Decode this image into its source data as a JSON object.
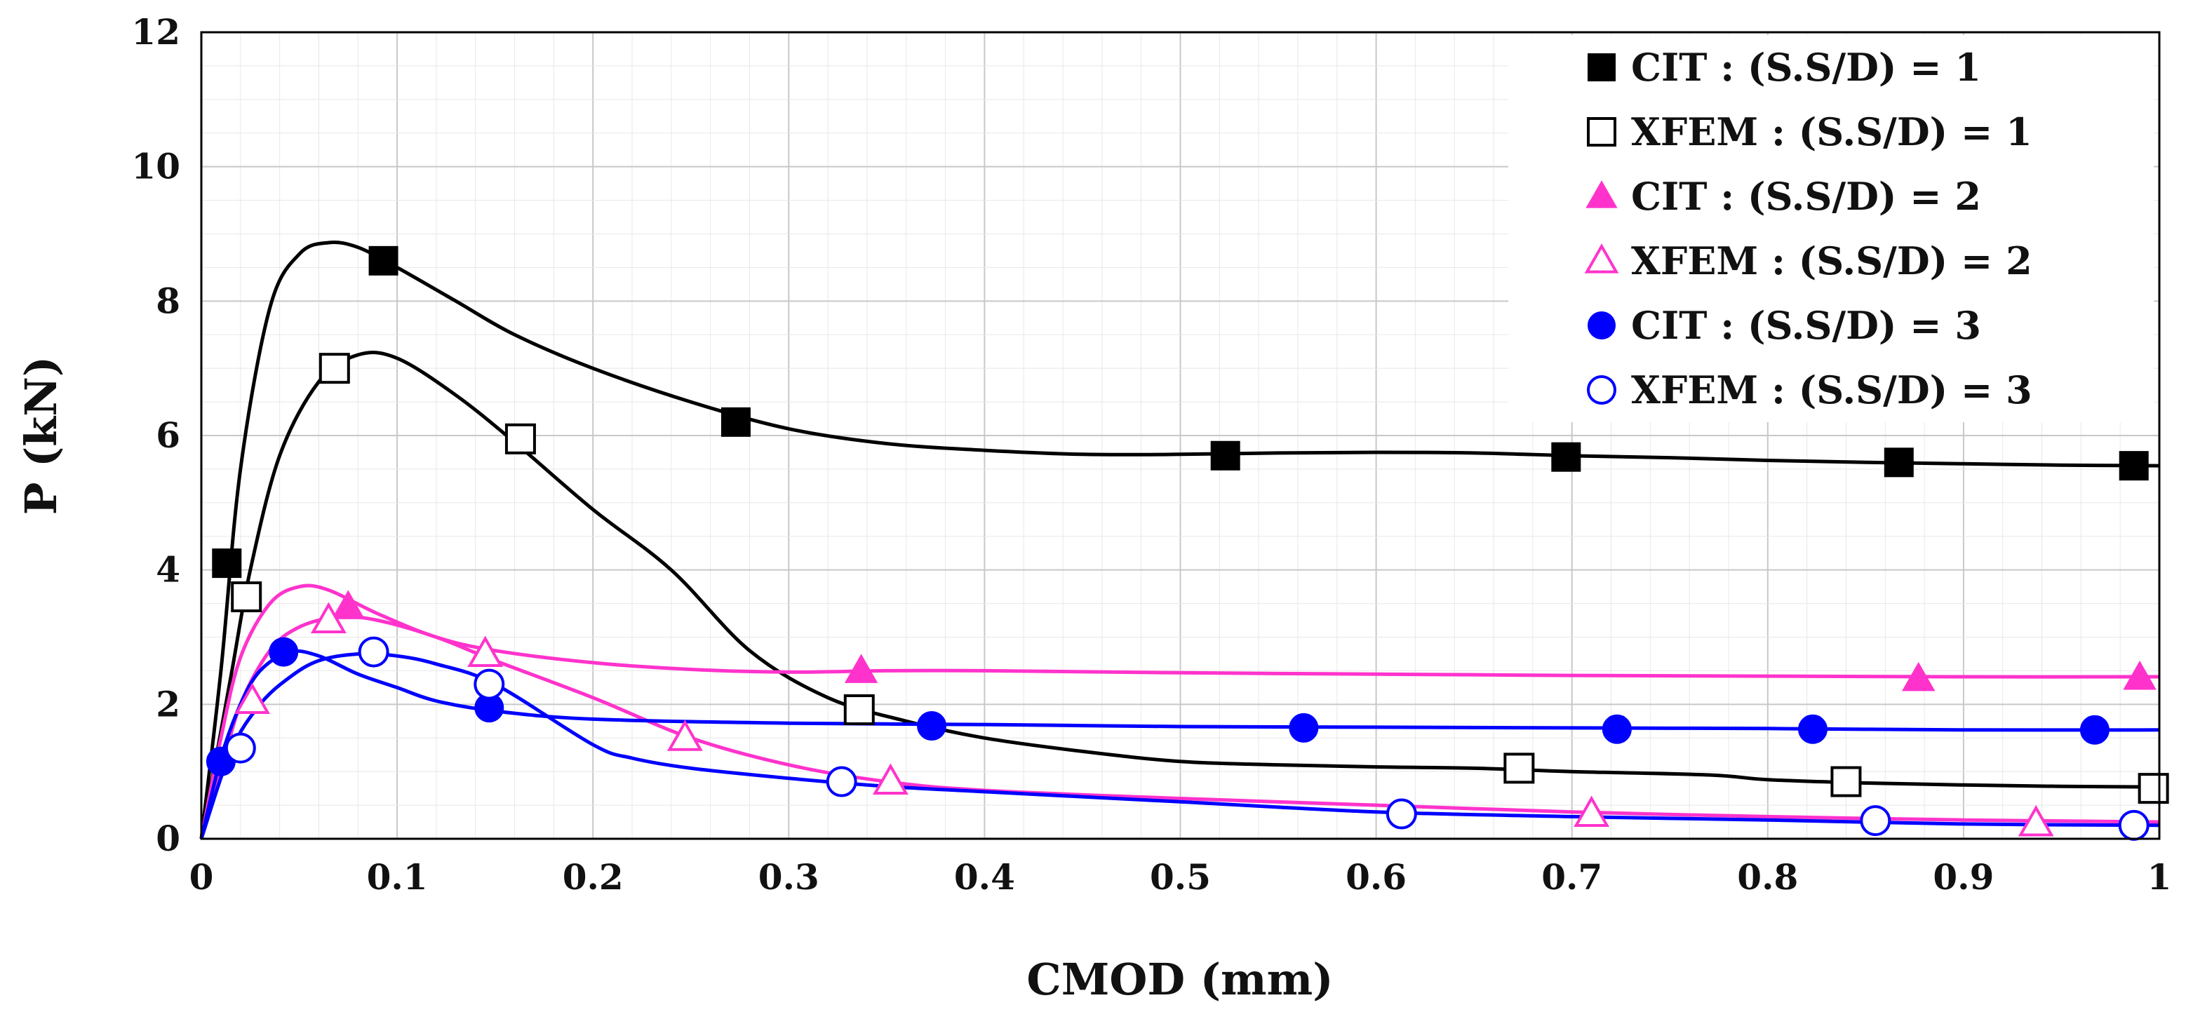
{
  "chart_data": {
    "type": "line",
    "title": "",
    "xlabel": "CMOD (mm)",
    "ylabel": "P (kN)",
    "xlim": [
      0,
      1
    ],
    "ylim": [
      0,
      12
    ],
    "x_ticks": [
      "0",
      "0.1",
      "0.2",
      "0.3",
      "0.4",
      "0.5",
      "0.6",
      "0.7",
      "0.8",
      "0.9",
      "1"
    ],
    "y_ticks": [
      "0",
      "2",
      "4",
      "6",
      "8",
      "10",
      "12"
    ],
    "grid": true,
    "legend_position": "top-right",
    "series": [
      {
        "name": "CIT : (S.S/D) = 1",
        "color": "#000000",
        "marker": "square-filled",
        "curve": [
          [
            0,
            0
          ],
          [
            0.01,
            2.5
          ],
          [
            0.02,
            5.5
          ],
          [
            0.035,
            7.9
          ],
          [
            0.05,
            8.7
          ],
          [
            0.065,
            8.87
          ],
          [
            0.08,
            8.8
          ],
          [
            0.1,
            8.5
          ],
          [
            0.13,
            8.0
          ],
          [
            0.16,
            7.5
          ],
          [
            0.2,
            7.0
          ],
          [
            0.25,
            6.5
          ],
          [
            0.3,
            6.1
          ],
          [
            0.35,
            5.88
          ],
          [
            0.4,
            5.78
          ],
          [
            0.45,
            5.72
          ],
          [
            0.5,
            5.72
          ],
          [
            0.55,
            5.74
          ],
          [
            0.6,
            5.75
          ],
          [
            0.65,
            5.74
          ],
          [
            0.7,
            5.7
          ],
          [
            0.75,
            5.67
          ],
          [
            0.8,
            5.63
          ],
          [
            0.85,
            5.6
          ],
          [
            0.9,
            5.58
          ],
          [
            0.95,
            5.56
          ],
          [
            1.0,
            5.55
          ]
        ],
        "points": [
          [
            0.013,
            4.1
          ],
          [
            0.093,
            8.6
          ],
          [
            0.273,
            6.2
          ],
          [
            0.523,
            5.7
          ],
          [
            0.697,
            5.68
          ],
          [
            0.867,
            5.6
          ],
          [
            0.987,
            5.55
          ]
        ]
      },
      {
        "name": "XFEM : (S.S/D) = 1",
        "color": "#000000",
        "marker": "square-open",
        "curve": [
          [
            0,
            0
          ],
          [
            0.015,
            2.4
          ],
          [
            0.025,
            4.0
          ],
          [
            0.04,
            5.7
          ],
          [
            0.06,
            6.8
          ],
          [
            0.08,
            7.2
          ],
          [
            0.1,
            7.15
          ],
          [
            0.13,
            6.6
          ],
          [
            0.16,
            5.9
          ],
          [
            0.2,
            4.9
          ],
          [
            0.24,
            4.0
          ],
          [
            0.28,
            2.8
          ],
          [
            0.32,
            2.1
          ],
          [
            0.36,
            1.75
          ],
          [
            0.4,
            1.5
          ],
          [
            0.45,
            1.3
          ],
          [
            0.5,
            1.15
          ],
          [
            0.55,
            1.1
          ],
          [
            0.6,
            1.07
          ],
          [
            0.65,
            1.05
          ],
          [
            0.7,
            1.0
          ],
          [
            0.77,
            0.95
          ],
          [
            0.8,
            0.88
          ],
          [
            0.85,
            0.83
          ],
          [
            0.9,
            0.8
          ],
          [
            0.95,
            0.78
          ],
          [
            1.0,
            0.77
          ]
        ],
        "points": [
          [
            0.023,
            3.6
          ],
          [
            0.068,
            7.0
          ],
          [
            0.163,
            5.95
          ],
          [
            0.336,
            1.92
          ],
          [
            0.673,
            1.05
          ],
          [
            0.84,
            0.85
          ],
          [
            0.997,
            0.75
          ]
        ]
      },
      {
        "name": "CIT : (S.S/D) = 2",
        "color": "#ff33cc",
        "marker": "triangle-filled",
        "curve": [
          [
            0,
            0
          ],
          [
            0.01,
            1.5
          ],
          [
            0.02,
            2.7
          ],
          [
            0.035,
            3.5
          ],
          [
            0.05,
            3.75
          ],
          [
            0.065,
            3.7
          ],
          [
            0.09,
            3.35
          ],
          [
            0.12,
            3.0
          ],
          [
            0.15,
            2.8
          ],
          [
            0.2,
            2.62
          ],
          [
            0.25,
            2.52
          ],
          [
            0.3,
            2.48
          ],
          [
            0.35,
            2.5
          ],
          [
            0.4,
            2.5
          ],
          [
            0.5,
            2.47
          ],
          [
            0.6,
            2.45
          ],
          [
            0.7,
            2.43
          ],
          [
            0.8,
            2.42
          ],
          [
            0.9,
            2.41
          ],
          [
            1.0,
            2.41
          ]
        ],
        "points": [
          [
            0.075,
            3.45
          ],
          [
            0.337,
            2.5
          ],
          [
            0.877,
            2.38
          ],
          [
            0.99,
            2.4
          ]
        ]
      },
      {
        "name": "XFEM : (S.S/D) = 2",
        "color": "#ff33cc",
        "marker": "triangle-open",
        "curve": [
          [
            0,
            0
          ],
          [
            0.01,
            1.0
          ],
          [
            0.02,
            2.0
          ],
          [
            0.035,
            2.8
          ],
          [
            0.05,
            3.15
          ],
          [
            0.07,
            3.3
          ],
          [
            0.09,
            3.25
          ],
          [
            0.12,
            3.0
          ],
          [
            0.15,
            2.65
          ],
          [
            0.2,
            2.1
          ],
          [
            0.25,
            1.5
          ],
          [
            0.3,
            1.1
          ],
          [
            0.35,
            0.85
          ],
          [
            0.4,
            0.72
          ],
          [
            0.5,
            0.6
          ],
          [
            0.6,
            0.5
          ],
          [
            0.7,
            0.4
          ],
          [
            0.8,
            0.33
          ],
          [
            0.9,
            0.28
          ],
          [
            1.0,
            0.25
          ]
        ],
        "points": [
          [
            0.026,
            2.05
          ],
          [
            0.065,
            3.25
          ],
          [
            0.145,
            2.75
          ],
          [
            0.247,
            1.5
          ],
          [
            0.352,
            0.85
          ],
          [
            0.71,
            0.37
          ],
          [
            0.937,
            0.23
          ]
        ]
      },
      {
        "name": "CIT : (S.S/D) = 3",
        "color": "#0000ff",
        "marker": "circle-filled",
        "curve": [
          [
            0,
            0
          ],
          [
            0.01,
            1.2
          ],
          [
            0.02,
            2.0
          ],
          [
            0.03,
            2.5
          ],
          [
            0.045,
            2.78
          ],
          [
            0.06,
            2.72
          ],
          [
            0.08,
            2.45
          ],
          [
            0.1,
            2.25
          ],
          [
            0.12,
            2.05
          ],
          [
            0.15,
            1.9
          ],
          [
            0.2,
            1.78
          ],
          [
            0.3,
            1.72
          ],
          [
            0.4,
            1.7
          ],
          [
            0.5,
            1.67
          ],
          [
            0.6,
            1.66
          ],
          [
            0.7,
            1.65
          ],
          [
            0.8,
            1.64
          ],
          [
            0.9,
            1.62
          ],
          [
            1.0,
            1.62
          ]
        ],
        "points": [
          [
            0.01,
            1.15
          ],
          [
            0.042,
            2.78
          ],
          [
            0.147,
            1.95
          ],
          [
            0.373,
            1.68
          ],
          [
            0.563,
            1.65
          ],
          [
            0.723,
            1.63
          ],
          [
            0.823,
            1.63
          ],
          [
            0.967,
            1.62
          ]
        ]
      },
      {
        "name": "XFEM : (S.S/D) = 3",
        "color": "#0000ff",
        "marker": "circle-open",
        "curve": [
          [
            0,
            0
          ],
          [
            0.015,
            1.3
          ],
          [
            0.03,
            2.0
          ],
          [
            0.045,
            2.4
          ],
          [
            0.06,
            2.65
          ],
          [
            0.08,
            2.75
          ],
          [
            0.1,
            2.72
          ],
          [
            0.12,
            2.6
          ],
          [
            0.15,
            2.3
          ],
          [
            0.2,
            1.4
          ],
          [
            0.22,
            1.2
          ],
          [
            0.25,
            1.05
          ],
          [
            0.3,
            0.9
          ],
          [
            0.35,
            0.78
          ],
          [
            0.4,
            0.7
          ],
          [
            0.5,
            0.55
          ],
          [
            0.6,
            0.4
          ],
          [
            0.7,
            0.33
          ],
          [
            0.8,
            0.28
          ],
          [
            0.9,
            0.22
          ],
          [
            1.0,
            0.2
          ]
        ],
        "points": [
          [
            0.02,
            1.35
          ],
          [
            0.088,
            2.78
          ],
          [
            0.147,
            2.3
          ],
          [
            0.327,
            0.85
          ],
          [
            0.613,
            0.37
          ],
          [
            0.855,
            0.27
          ],
          [
            0.987,
            0.2
          ]
        ]
      }
    ]
  }
}
